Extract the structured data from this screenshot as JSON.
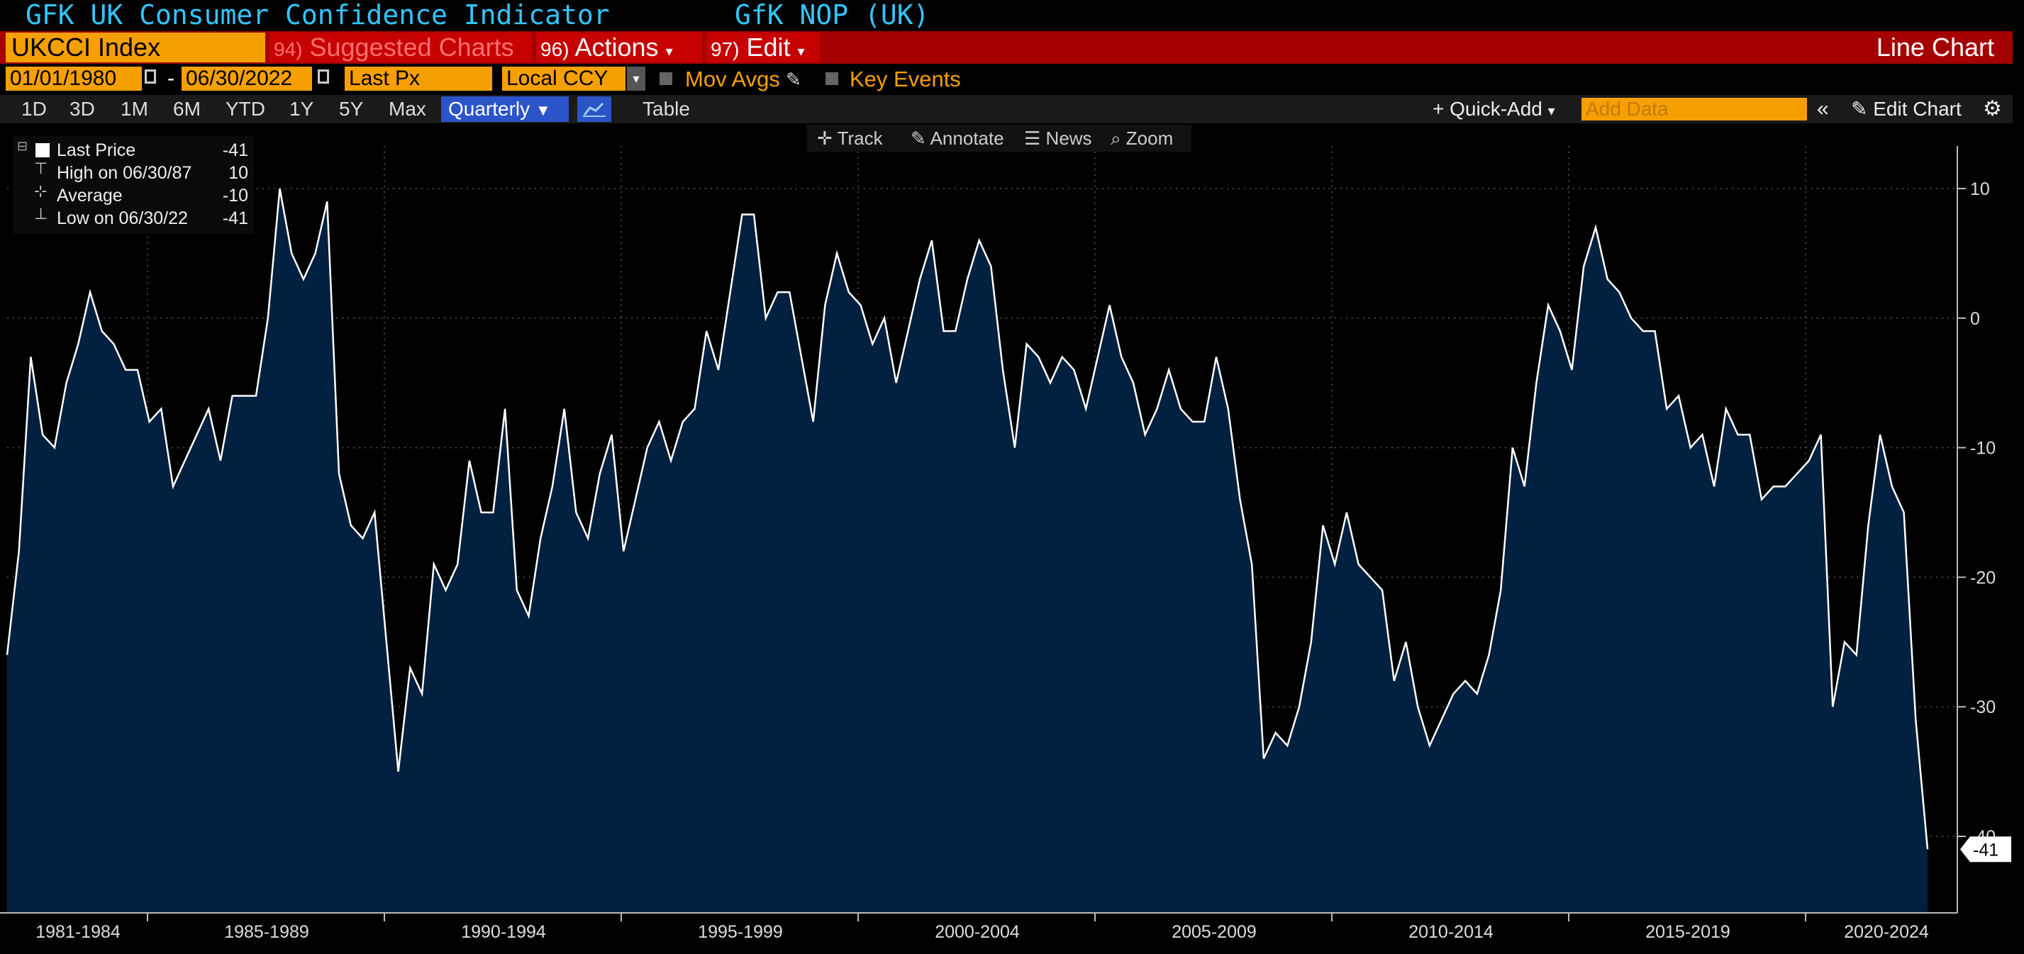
{
  "header": {
    "title": "GFK UK Consumer Confidence Indicator",
    "source": "GfK NOP (UK)"
  },
  "command_bar": {
    "ticker": "UKCCI Index",
    "suggested_num": "94)",
    "suggested_label": "Suggested Charts",
    "actions_num": "96)",
    "actions_label": "Actions",
    "edit_num": "97)",
    "edit_label": "Edit",
    "chart_type": "Line Chart"
  },
  "settings": {
    "start_date": "01/01/1980",
    "end_date": "06/30/2022",
    "field": "Last Px",
    "currency": "Local CCY",
    "mov_avgs": "Mov Avgs",
    "key_events": "Key Events"
  },
  "periods": {
    "items": [
      "1D",
      "3D",
      "1M",
      "6M",
      "YTD",
      "1Y",
      "5Y",
      "Max"
    ],
    "frequency": "Quarterly",
    "table": "Table",
    "quick_add": "+ Quick-Add",
    "add_data_placeholder": "Add Data",
    "edit_chart": "Edit Chart"
  },
  "tools": {
    "track": "Track",
    "annotate": "Annotate",
    "news": "News",
    "zoom": "Zoom"
  },
  "legend": {
    "last_price_label": "Last Price",
    "last_price_value": "-41",
    "high_label": "High on 06/30/87",
    "high_value": "10",
    "average_label": "Average",
    "average_value": "-10",
    "low_label": "Low on 06/30/22",
    "low_value": "-41"
  },
  "colors": {
    "line": "#ffffff",
    "fill": "#02203f",
    "accent_orange": "#f5a000",
    "command_red": "#a50000",
    "title_cyan": "#33c5ff"
  },
  "chart_data": {
    "type": "area",
    "x_tick_labels": [
      "1981-1984",
      "1985-1989",
      "1990-1994",
      "1995-1999",
      "2000-2004",
      "2005-2009",
      "2010-2014",
      "2015-2019",
      "2020-2024"
    ],
    "y_ticks": [
      10,
      0,
      -10,
      -20,
      -30,
      -40
    ],
    "ylim": [
      -46,
      13
    ],
    "last_value_label": "-41",
    "frequency": "quarterly",
    "x_start": "1980 Q1",
    "x_end": "2022 Q2",
    "series": [
      {
        "name": "Last Price",
        "values": [
          -26,
          -18,
          -3,
          -9,
          -10,
          -5,
          -2,
          2,
          -1,
          -2,
          -4,
          -4,
          -8,
          -7,
          -13,
          -11,
          -9,
          -7,
          -11,
          -6,
          -6,
          -6,
          0,
          10,
          5,
          3,
          5,
          9,
          -12,
          -16,
          -17,
          -15,
          -25,
          -35,
          -27,
          -29,
          -19,
          -21,
          -19,
          -11,
          -15,
          -15,
          -7,
          -21,
          -23,
          -17,
          -13,
          -7,
          -15,
          -17,
          -12,
          -9,
          -18,
          -14,
          -10,
          -8,
          -11,
          -8,
          -7,
          -1,
          -4,
          2,
          8,
          8,
          0,
          2,
          2,
          -3,
          -8,
          1,
          5,
          2,
          1,
          -2,
          0,
          -5,
          -1,
          3,
          6,
          -1,
          -1,
          3,
          6,
          4,
          -4,
          -10,
          -2,
          -3,
          -5,
          -3,
          -4,
          -7,
          -3,
          1,
          -3,
          -5,
          -9,
          -7,
          -4,
          -7,
          -8,
          -8,
          -3,
          -7,
          -14,
          -19,
          -34,
          -32,
          -33,
          -30,
          -25,
          -16,
          -19,
          -15,
          -19,
          -20,
          -21,
          -28,
          -25,
          -30,
          -33,
          -31,
          -29,
          -28,
          -29,
          -26,
          -21,
          -10,
          -13,
          -5,
          1,
          -1,
          -4,
          4,
          7,
          3,
          2,
          0,
          -1,
          -1,
          -7,
          -6,
          -10,
          -9,
          -13,
          -7,
          -9,
          -9,
          -14,
          -13,
          -13,
          -12,
          -11,
          -9,
          -30,
          -25,
          -26,
          -16,
          -9,
          -13,
          -15,
          -31,
          -41
        ]
      }
    ]
  }
}
